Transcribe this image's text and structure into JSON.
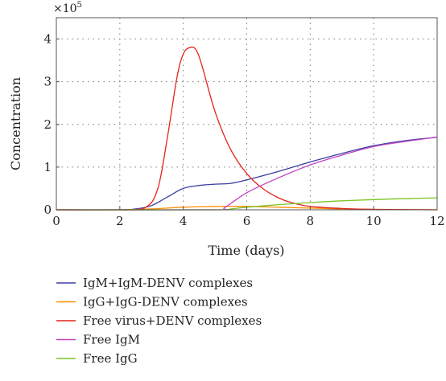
{
  "chart_data": {
    "type": "line",
    "title": "",
    "xlabel": "Time (days)",
    "ylabel": "Concentration",
    "y_multiplier_base": "×10",
    "y_multiplier_exp": "5",
    "xlim": [
      0,
      12
    ],
    "ylim": [
      0,
      450000
    ],
    "x_ticks": [
      0,
      2,
      4,
      6,
      8,
      10,
      12
    ],
    "y_ticks": [
      0,
      100000,
      200000,
      300000,
      400000
    ],
    "y_tick_labels": [
      "0",
      "1",
      "2",
      "3",
      "4"
    ],
    "grid": true,
    "legend_position": "below",
    "series": [
      {
        "name": "IgM+IgM-DENV complexes",
        "color": "#3b3fa0",
        "x": [
          0,
          2,
          2.5,
          3,
          3.5,
          4,
          4.5,
          5,
          5.5,
          6,
          7,
          8,
          9,
          10,
          11,
          12
        ],
        "y": [
          0,
          0,
          2000,
          10000,
          30000,
          50000,
          57000,
          60000,
          62000,
          70000,
          90000,
          112000,
          132000,
          150000,
          162000,
          170000
        ]
      },
      {
        "name": "IgG+IgG-DENV complexes",
        "color": "#ff8c00",
        "x": [
          0,
          2,
          3,
          4,
          5,
          6,
          7,
          8,
          9,
          10,
          11,
          12
        ],
        "y": [
          0,
          0,
          2000,
          6000,
          8000,
          8000,
          6000,
          4000,
          2000,
          1000,
          500,
          0
        ]
      },
      {
        "name": "Free virus+DENV complexes",
        "color": "#e3241b",
        "x": [
          0,
          2,
          2.8,
          3.2,
          3.5,
          3.8,
          4.0,
          4.2,
          4.4,
          4.6,
          5.0,
          5.5,
          6.0,
          6.5,
          7.0,
          7.5,
          8.0,
          9.0,
          10.0,
          11.0,
          12.0
        ],
        "y": [
          0,
          0,
          5000,
          50000,
          170000,
          310000,
          365000,
          380000,
          375000,
          335000,
          230000,
          140000,
          85000,
          50000,
          28000,
          15000,
          8000,
          3000,
          1000,
          300,
          0
        ]
      },
      {
        "name": "Free IgM",
        "color": "#c243c2",
        "x": [
          0,
          5,
          5.3,
          6,
          7,
          8,
          9,
          10,
          11,
          12
        ],
        "y": [
          0,
          0,
          5000,
          40000,
          75000,
          105000,
          128000,
          148000,
          160000,
          170000
        ]
      },
      {
        "name": "Free IgG",
        "color": "#7cc225",
        "x": [
          0,
          5,
          5.5,
          6,
          7,
          8,
          9,
          10,
          11,
          12
        ],
        "y": [
          0,
          0,
          2000,
          6000,
          12000,
          17000,
          21000,
          24000,
          26000,
          28000
        ]
      }
    ]
  }
}
